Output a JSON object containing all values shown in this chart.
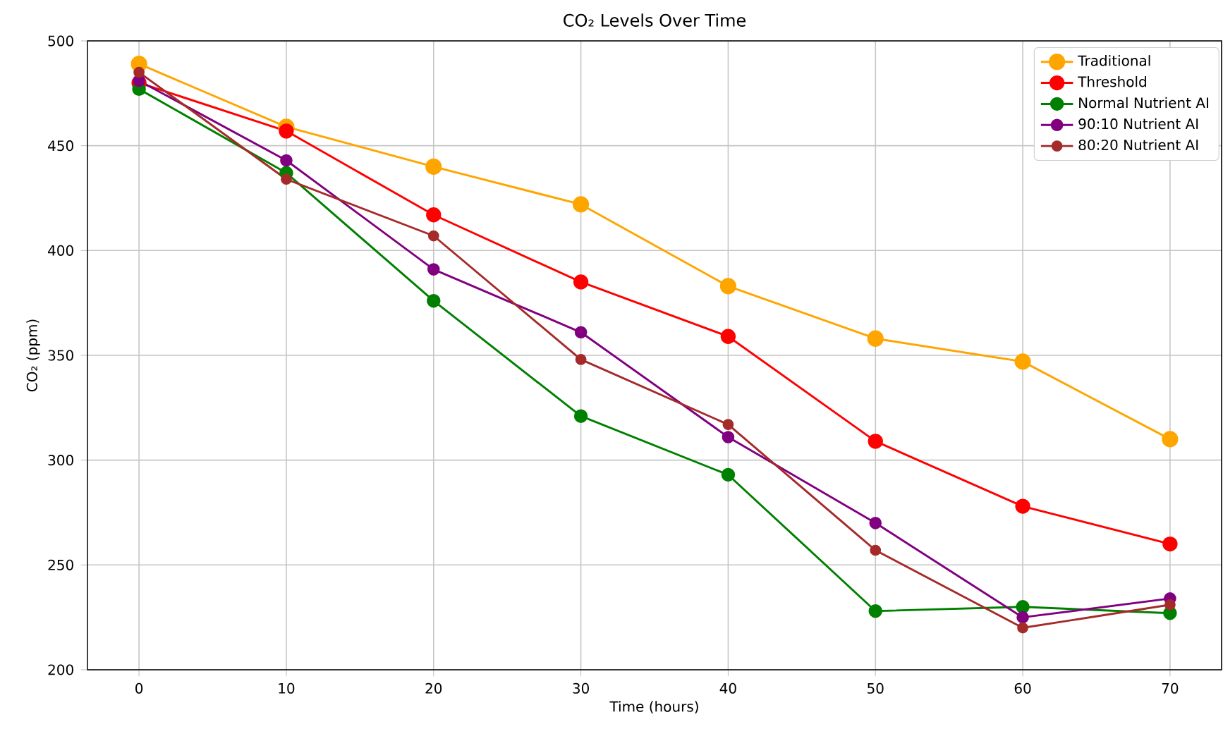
{
  "chart_data": {
    "type": "line",
    "title": "CO₂ Levels Over Time",
    "xlabel": "Time (hours)",
    "ylabel": "CO₂ (ppm)",
    "x": [
      0,
      10,
      20,
      30,
      40,
      50,
      60,
      70
    ],
    "series": [
      {
        "name": "Traditional",
        "color": "#ffa500",
        "values": [
          489,
          459,
          440,
          422,
          383,
          358,
          347,
          310
        ]
      },
      {
        "name": "Threshold",
        "color": "#ff0000",
        "values": [
          480,
          457,
          417,
          385,
          359,
          309,
          278,
          260
        ]
      },
      {
        "name": "Normal Nutrient AI",
        "color": "#008000",
        "values": [
          477,
          437,
          376,
          321,
          293,
          228,
          230,
          227
        ]
      },
      {
        "name": "90:10 Nutrient AI",
        "color": "#800080",
        "values": [
          481,
          443,
          391,
          361,
          311,
          270,
          225,
          234
        ]
      },
      {
        "name": "80:20 Nutrient AI",
        "color": "#a52a2a",
        "values": [
          485,
          434,
          407,
          348,
          317,
          257,
          220,
          231
        ]
      }
    ],
    "xlim": [
      -3.5,
      73.5
    ],
    "ylim": [
      200,
      500
    ],
    "xticks": [
      0,
      10,
      20,
      30,
      40,
      50,
      60,
      70
    ],
    "yticks": [
      200,
      250,
      300,
      350,
      400,
      450,
      500
    ],
    "grid": true,
    "legend": "top right",
    "marker": "circle",
    "line_style": "solid"
  }
}
